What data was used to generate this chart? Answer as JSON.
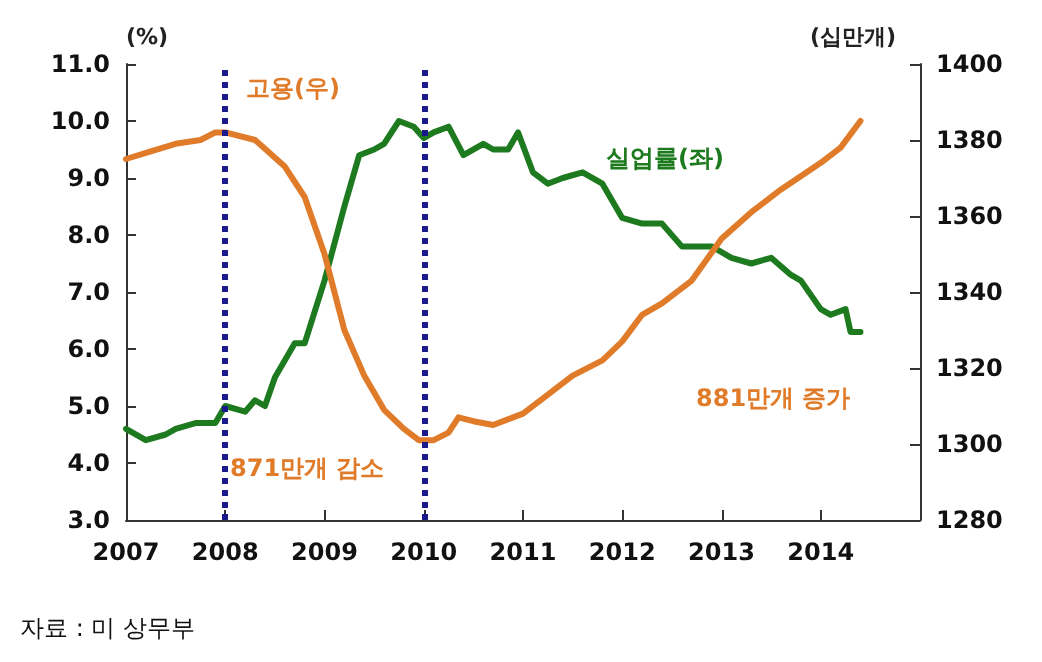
{
  "chart_data": {
    "type": "line",
    "ylabel": "(%)",
    "y2label": "(십만개)",
    "xlim": [
      2007,
      2015
    ],
    "xticks": [
      2007,
      2008,
      2009,
      2010,
      2011,
      2012,
      2013,
      2014
    ],
    "ylim": [
      3,
      11
    ],
    "yticks": [
      {
        "value": 3,
        "label": "3.0"
      },
      {
        "value": 4,
        "label": "4.0"
      },
      {
        "value": 5,
        "label": "5.0"
      },
      {
        "value": 6,
        "label": "6.0"
      },
      {
        "value": 7,
        "label": "7.0"
      },
      {
        "value": 8,
        "label": "8.0"
      },
      {
        "value": 9,
        "label": "9.0"
      },
      {
        "value": 10,
        "label": "10.0"
      },
      {
        "value": 11,
        "label": "11.0"
      }
    ],
    "y2lim": [
      1280,
      1400
    ],
    "y2ticks": [
      1280,
      1300,
      1320,
      1340,
      1360,
      1380,
      1400
    ],
    "grid": false,
    "marker": "none",
    "line_style": "solid",
    "series": [
      {
        "color": "#1e7a1e",
        "x": [
          2007.0,
          2007.2,
          2007.4,
          2007.5,
          2007.7,
          2007.9,
          2008.0,
          2008.2,
          2008.3,
          2008.4,
          2008.5,
          2008.7,
          2008.8,
          2009.0,
          2009.2,
          2009.35,
          2009.5,
          2009.6,
          2009.75,
          2009.9,
          2010.0,
          2010.1,
          2010.25,
          2010.4,
          2010.6,
          2010.7,
          2010.85,
          2010.95,
          2011.1,
          2011.25,
          2011.4,
          2011.6,
          2011.8,
          2012.0,
          2012.2,
          2012.4,
          2012.6,
          2012.9,
          2013.1,
          2013.3,
          2013.5,
          2013.7,
          2013.8,
          2014.0,
          2014.1,
          2014.25,
          2014.3,
          2014.4
        ],
        "values": [
          4.6,
          4.4,
          4.5,
          4.6,
          4.7,
          4.7,
          5.0,
          4.9,
          5.1,
          5.0,
          5.5,
          6.1,
          6.1,
          7.2,
          8.5,
          9.4,
          9.5,
          9.6,
          10.0,
          9.9,
          9.7,
          9.8,
          9.9,
          9.4,
          9.6,
          9.5,
          9.5,
          9.8,
          9.1,
          8.9,
          9.0,
          9.1,
          8.9,
          8.3,
          8.2,
          8.2,
          7.8,
          7.8,
          7.6,
          7.5,
          7.6,
          7.3,
          7.2,
          6.7,
          6.6,
          6.7,
          6.3,
          6.3
        ]
      },
      {
        "color": "#e07b2a",
        "axis": "y2",
        "x": [
          2007.0,
          2007.25,
          2007.5,
          2007.75,
          2007.9,
          2008.0,
          2008.3,
          2008.6,
          2008.8,
          2009.0,
          2009.2,
          2009.4,
          2009.6,
          2009.8,
          2009.95,
          2010.1,
          2010.25,
          2010.35,
          2010.5,
          2010.7,
          2010.9,
          2011.0,
          2011.3,
          2011.5,
          2011.8,
          2012.0,
          2012.2,
          2012.4,
          2012.7,
          2013.0,
          2013.3,
          2013.6,
          2014.0,
          2014.2,
          2014.4
        ],
        "values": [
          1375,
          1377,
          1379,
          1380,
          1382,
          1382,
          1380,
          1373,
          1365,
          1350,
          1330,
          1318,
          1309,
          1304,
          1301,
          1301,
          1303,
          1307,
          1306,
          1305,
          1307,
          1308,
          1314,
          1318,
          1322,
          1327,
          1334,
          1337,
          1343,
          1354,
          1361,
          1367,
          1374,
          1378,
          1385
        ]
      }
    ],
    "ref_lines": [
      {
        "axis": "x",
        "value": 2008,
        "color": "#1a1a8c",
        "line_style": "dotted"
      },
      {
        "axis": "x",
        "value": 2010,
        "color": "#1a1a8c",
        "line_style": "dotted"
      }
    ],
    "annotations": [
      "고용(우)",
      "실업률(좌)",
      "871만개 감소",
      "881만개 증가",
      "자료 : 미 상무부"
    ]
  }
}
